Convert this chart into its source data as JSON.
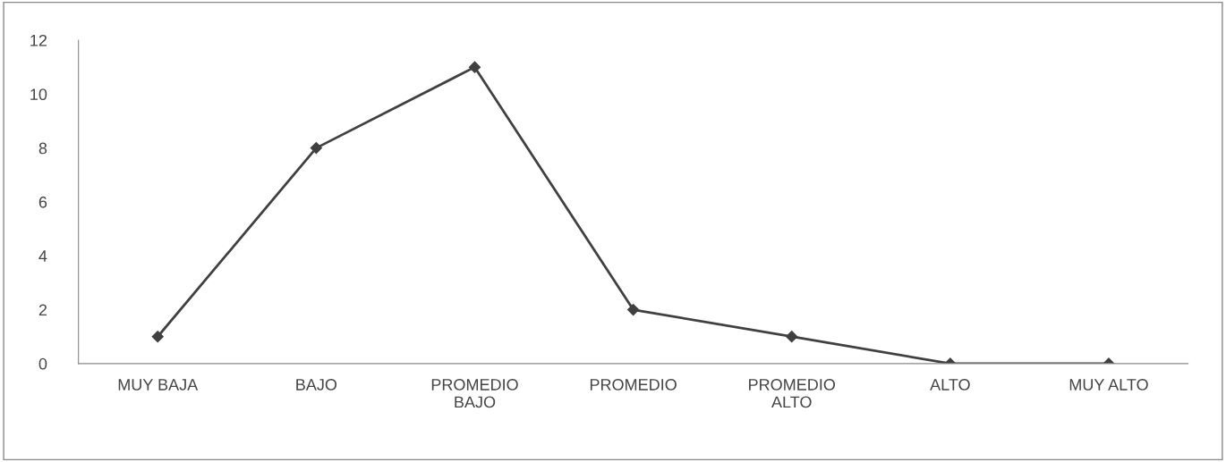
{
  "chart_data": {
    "type": "line",
    "categories": [
      "MUY BAJA",
      "BAJO",
      "PROMEDIO\nBAJO",
      "PROMEDIO",
      "PROMEDIO\nALTO",
      "ALTO",
      "MUY ALTO"
    ],
    "series": [
      {
        "color": "#404040",
        "values": [
          1,
          8,
          11,
          2,
          1,
          0,
          0
        ]
      }
    ],
    "ylim": [
      0,
      12
    ],
    "yticks": [
      0,
      2,
      4,
      6,
      8,
      10,
      12
    ],
    "grid": false,
    "marker": "diamond",
    "line_style": "solid"
  }
}
